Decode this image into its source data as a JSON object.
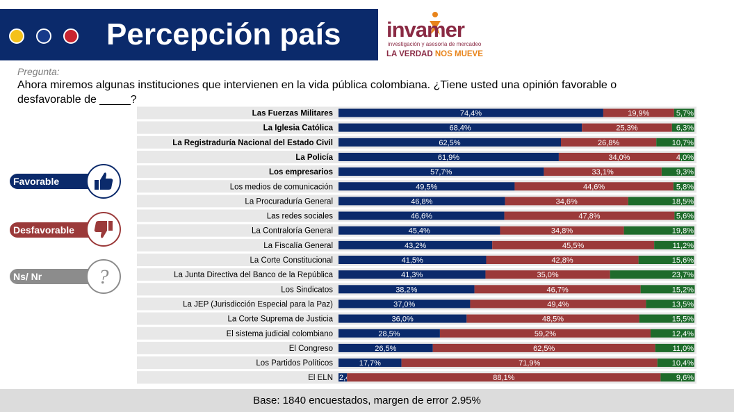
{
  "header": {
    "title": "Percepción país",
    "dot_colors": [
      "#f4c11a",
      "#163a8a",
      "#c8232f"
    ],
    "band_color": "#0b2a6b"
  },
  "logo": {
    "name": "invamer",
    "subtitle": "investigación y asesoría de mercadeo",
    "tagline_part1": "LA VERDAD",
    "tagline_part2": "NOS MUEVE"
  },
  "question": {
    "label": "Pregunta:",
    "text": "Ahora miremos algunas instituciones que intervienen en la vida pública colombiana. ¿Tiene usted una opinión favorable o desfavorable de _____?"
  },
  "legend": {
    "favorable": {
      "label": "Favorable",
      "color": "#0b2a6b",
      "icon": "thumbs-up-icon"
    },
    "desfavorable": {
      "label": "Desfavorable",
      "color": "#9b3a3a",
      "icon": "thumbs-down-icon"
    },
    "nsnr": {
      "label": "Ns/ Nr",
      "color": "#8c8c8c",
      "icon": "question-mark-icon"
    }
  },
  "chart_data": {
    "type": "bar",
    "orientation": "horizontal",
    "stacked": true,
    "percent_stacked": true,
    "categories": [
      "Las Fuerzas Militares",
      "La Iglesia Católica",
      "La Registraduría Nacional del Estado Civil",
      "La Policía",
      "Los empresarios",
      "Los medios de comunicación",
      "La Procuraduría General",
      "Las redes sociales",
      "La Contraloría General",
      "La Fiscalía General",
      "La Corte Constitucional",
      "La Junta Directiva del Banco de la República",
      "Los Sindicatos",
      "La JEP (Jurisdicción Especial para la Paz)",
      "La Corte Suprema de Justicia",
      "El sistema judicial colombiano",
      "El Congreso",
      "Los Partidos Políticos",
      "El ELN"
    ],
    "bold_categories": [
      "Las Fuerzas Militares",
      "La Iglesia Católica",
      "La Registraduría Nacional del Estado Civil",
      "La Policía",
      "Los empresarios"
    ],
    "series": [
      {
        "name": "Favorable",
        "color": "#0b2a6b",
        "values": [
          74.4,
          68.4,
          62.5,
          61.9,
          57.7,
          49.5,
          46.8,
          46.6,
          45.4,
          43.2,
          41.5,
          41.3,
          38.2,
          37.0,
          36.0,
          28.5,
          26.5,
          17.7,
          2.4
        ],
        "labels": [
          "74,4%",
          "68,4%",
          "62,5%",
          "61,9%",
          "57,7%",
          "49,5%",
          "46,8%",
          "46,6%",
          "45,4%",
          "43,2%",
          "41,5%",
          "41,3%",
          "38,2%",
          "37,0%",
          "36,0%",
          "28,5%",
          "26,5%",
          "17,7%",
          "2,4%"
        ]
      },
      {
        "name": "Desfavorable",
        "color": "#9b3a3a",
        "values": [
          19.9,
          25.3,
          26.8,
          34.0,
          33.1,
          44.6,
          34.6,
          47.8,
          34.8,
          45.5,
          42.8,
          35.0,
          46.7,
          49.4,
          48.5,
          59.2,
          62.5,
          71.9,
          88.1
        ],
        "labels": [
          "19,9%",
          "25,3%",
          "26,8%",
          "34,0%",
          "33,1%",
          "44,6%",
          "34,6%",
          "47,8%",
          "34,8%",
          "45,5%",
          "42,8%",
          "35,0%",
          "46,7%",
          "49,4%",
          "48,5%",
          "59,2%",
          "62,5%",
          "71,9%",
          "88,1%"
        ]
      },
      {
        "name": "Ns/ Nr",
        "color": "#1e6b2b",
        "values": [
          5.7,
          6.3,
          10.7,
          4.0,
          9.3,
          5.8,
          18.5,
          5.6,
          19.8,
          11.2,
          15.6,
          23.7,
          15.2,
          13.5,
          15.5,
          12.4,
          11.0,
          10.4,
          9.6
        ],
        "labels": [
          "5,7%",
          "6,3%",
          "10,7%",
          "4,0%",
          "9,3%",
          "5,8%",
          "18,5%",
          "5,6%",
          "19,8%",
          "11,2%",
          "15,6%",
          "23,7%",
          "15,2%",
          "13,5%",
          "15,5%",
          "12,4%",
          "11,0%",
          "10,4%",
          "9,6%"
        ]
      }
    ],
    "xlim": [
      0,
      100
    ],
    "row_band_color": "#e8e8e8"
  },
  "footer": {
    "text": "Base: 1840 encuestados, margen de error 2.95%"
  }
}
